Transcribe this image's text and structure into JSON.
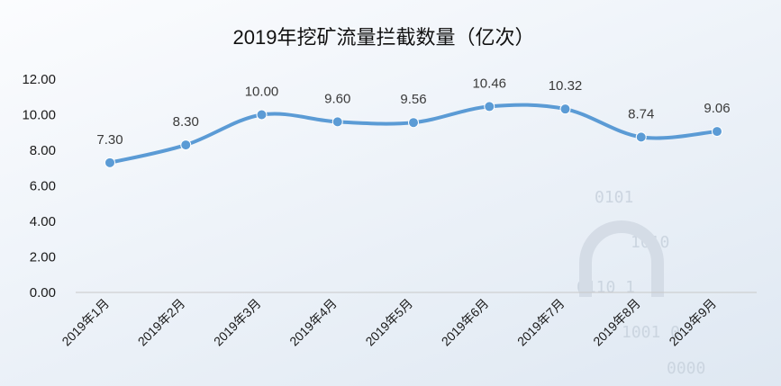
{
  "chart_data": {
    "type": "line",
    "title": "2019年挖矿流量拦截数量（亿次）",
    "categories": [
      "2019年1月",
      "2019年2月",
      "2019年3月",
      "2019年4月",
      "2019年5月",
      "2019年6月",
      "2019年7月",
      "2019年8月",
      "2019年9月"
    ],
    "values": [
      7.3,
      8.3,
      10.0,
      9.6,
      9.56,
      10.46,
      10.32,
      8.74,
      9.06
    ],
    "data_labels": [
      "7.30",
      "8.30",
      "10.00",
      "9.60",
      "9.56",
      "10.46",
      "10.32",
      "8.74",
      "9.06"
    ],
    "y_ticks": [
      "0.00",
      "2.00",
      "4.00",
      "6.00",
      "8.00",
      "10.00",
      "12.00"
    ],
    "ylim": [
      0,
      12
    ],
    "grid": false,
    "legend": "none",
    "line_color": "#5b9bd5",
    "background": "watermark-binary-lock"
  }
}
